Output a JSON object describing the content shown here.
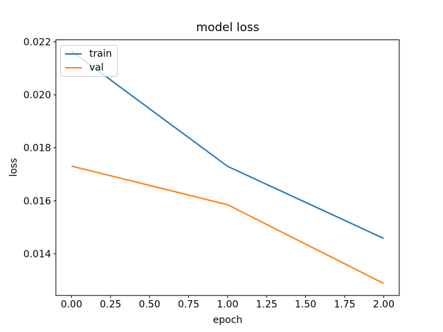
{
  "chart_data": {
    "type": "line",
    "title": "model loss",
    "xlabel": "epoch",
    "ylabel": "loss",
    "x": [
      0,
      1,
      2
    ],
    "series": [
      {
        "name": "train",
        "color": "#1f77b4",
        "values": [
          0.02165,
          0.0173,
          0.01458
        ]
      },
      {
        "name": "val",
        "color": "#ff7f0e",
        "values": [
          0.01731,
          0.01585,
          0.01288
        ]
      }
    ],
    "xlim": [
      -0.1,
      2.1
    ],
    "ylim": [
      0.012425,
      0.022075
    ],
    "xticks": [
      0,
      0.25,
      0.5,
      0.75,
      1,
      1.25,
      1.5,
      1.75,
      2
    ],
    "xtick_labels": [
      "0.00",
      "0.25",
      "0.50",
      "0.75",
      "1.00",
      "1.25",
      "1.50",
      "1.75",
      "2.00"
    ],
    "yticks": [
      0.014,
      0.016,
      0.018,
      0.02,
      0.022
    ],
    "ytick_labels": [
      "0.014",
      "0.016",
      "0.018",
      "0.020",
      "0.022"
    ],
    "grid": false,
    "legend_position": "upper-left",
    "axis_color": "#000000",
    "background_color": "#ffffff"
  }
}
